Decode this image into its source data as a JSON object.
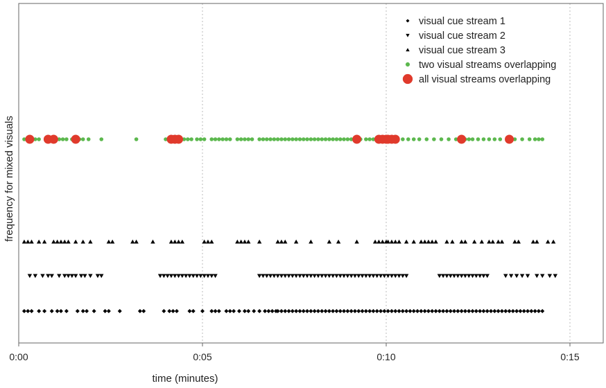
{
  "chart_data": {
    "type": "scatter",
    "xlabel": "time (minutes)",
    "ylabel": "frequency for mixed visuals",
    "xlim": [
      0,
      16
    ],
    "x_ticks": [
      0,
      5,
      10,
      15
    ],
    "x_tick_labels": [
      "0:00",
      "0:05",
      "0:10",
      "0:15"
    ],
    "grid": "vertical dotted lines at ticks",
    "legend_position": "top-right",
    "legend": [
      {
        "label": "visual cue stream 1",
        "marker": "diamond",
        "color": "#000000"
      },
      {
        "label": "visual cue stream 2",
        "marker": "triangle-down",
        "color": "#000000"
      },
      {
        "label": "visual cue stream 3",
        "marker": "triangle-up",
        "color": "#000000"
      },
      {
        "label": "two visual streams overlapping",
        "marker": "small-circle",
        "color": "#5cb84e"
      },
      {
        "label": "all visual streams overlapping",
        "marker": "large-circle",
        "color": "#e03a2c"
      }
    ],
    "series": [
      {
        "name": "visual cue stream 1",
        "row": 1,
        "x": [
          0.15,
          0.25,
          0.35,
          0.55,
          0.7,
          0.9,
          1.05,
          1.15,
          1.3,
          1.6,
          1.75,
          1.85,
          2.05,
          2.35,
          2.45,
          2.75,
          3.3,
          3.4,
          3.95,
          4.1,
          4.2,
          4.3,
          4.65,
          4.75,
          5.0,
          5.25,
          5.35,
          5.45,
          5.65,
          5.75,
          5.85,
          6.0,
          6.15,
          6.25,
          6.4,
          6.55,
          6.7,
          6.8,
          6.9,
          7.0,
          7.05,
          7.15,
          7.25,
          7.35,
          7.45,
          7.55,
          7.65,
          7.75,
          7.85,
          7.95,
          8.05,
          8.15,
          8.25,
          8.35,
          8.45,
          8.55,
          8.65,
          8.75,
          8.85,
          8.95,
          9.05,
          9.15,
          9.25,
          9.35,
          9.45,
          9.55,
          9.65,
          9.75,
          9.85,
          9.95,
          10.05,
          10.15,
          10.25,
          10.35,
          10.45,
          10.55,
          10.65,
          10.75,
          10.85,
          10.95,
          11.05,
          11.15,
          11.25,
          11.35,
          11.45,
          11.55,
          11.65,
          11.75,
          11.85,
          11.95,
          12.05,
          12.15,
          12.25,
          12.35,
          12.45,
          12.55,
          12.65,
          12.75,
          12.85,
          12.95,
          13.05,
          13.15,
          13.25,
          13.35,
          13.45,
          13.55,
          13.65,
          13.75,
          13.85,
          13.95,
          14.05,
          14.15,
          14.25
        ]
      },
      {
        "name": "visual cue stream 2",
        "row": 2,
        "x": [
          0.3,
          0.45,
          0.65,
          0.8,
          0.9,
          1.1,
          1.25,
          1.35,
          1.45,
          1.55,
          1.7,
          1.8,
          1.95,
          2.15,
          2.25,
          3.85,
          3.95,
          4.05,
          4.15,
          4.25,
          4.35,
          4.45,
          4.55,
          4.65,
          4.75,
          4.85,
          4.95,
          5.05,
          5.15,
          5.25,
          5.35,
          6.55,
          6.65,
          6.75,
          6.85,
          6.95,
          7.05,
          7.15,
          7.25,
          7.35,
          7.45,
          7.55,
          7.65,
          7.75,
          7.85,
          7.95,
          8.05,
          8.15,
          8.25,
          8.35,
          8.45,
          8.55,
          8.65,
          8.75,
          8.85,
          8.95,
          9.05,
          9.15,
          9.25,
          9.35,
          9.45,
          9.55,
          9.65,
          9.75,
          9.85,
          9.95,
          10.05,
          10.15,
          10.25,
          10.35,
          10.45,
          10.55,
          11.45,
          11.55,
          11.65,
          11.75,
          11.85,
          11.95,
          12.05,
          12.15,
          12.25,
          12.35,
          12.45,
          12.55,
          12.65,
          12.75,
          13.25,
          13.4,
          13.55,
          13.7,
          13.85,
          14.1,
          14.25,
          14.45,
          14.6
        ]
      },
      {
        "name": "visual cue stream 3",
        "row": 3,
        "x": [
          0.15,
          0.25,
          0.35,
          0.55,
          0.7,
          0.95,
          1.05,
          1.15,
          1.25,
          1.35,
          1.55,
          1.75,
          1.95,
          2.45,
          2.55,
          3.1,
          3.2,
          3.65,
          4.15,
          4.25,
          4.35,
          4.45,
          5.05,
          5.15,
          5.25,
          5.95,
          6.05,
          6.15,
          6.25,
          6.55,
          7.05,
          7.15,
          7.25,
          7.55,
          7.95,
          8.45,
          8.7,
          9.2,
          9.7,
          9.8,
          9.9,
          10.0,
          10.05,
          10.15,
          10.25,
          10.35,
          10.55,
          10.75,
          10.95,
          11.05,
          11.15,
          11.25,
          11.35,
          11.65,
          11.8,
          12.05,
          12.15,
          12.4,
          12.6,
          12.8,
          12.9,
          13.05,
          13.15,
          13.5,
          13.6,
          14.0,
          14.1,
          14.4,
          14.55
        ]
      },
      {
        "name": "two visual streams overlapping",
        "row": 0,
        "x": [
          0.15,
          0.25,
          0.35,
          0.45,
          0.55,
          0.75,
          0.85,
          1.0,
          1.1,
          1.2,
          1.3,
          1.45,
          1.55,
          1.65,
          1.75,
          1.9,
          2.25,
          3.2,
          4.0,
          4.1,
          4.2,
          4.3,
          4.4,
          4.5,
          4.6,
          4.7,
          4.85,
          4.95,
          5.05,
          5.25,
          5.35,
          5.45,
          5.55,
          5.65,
          5.75,
          5.95,
          6.05,
          6.15,
          6.25,
          6.35,
          6.55,
          6.65,
          6.75,
          6.85,
          6.95,
          7.05,
          7.15,
          7.25,
          7.35,
          7.45,
          7.55,
          7.65,
          7.75,
          7.85,
          7.95,
          8.05,
          8.15,
          8.25,
          8.35,
          8.45,
          8.55,
          8.65,
          8.75,
          8.85,
          8.95,
          9.05,
          9.15,
          9.3,
          9.45,
          9.55,
          9.65,
          9.75,
          9.85,
          9.95,
          10.05,
          10.15,
          10.3,
          10.45,
          10.6,
          10.75,
          10.9,
          11.1,
          11.3,
          11.5,
          11.7,
          11.9,
          12.05,
          12.15,
          12.25,
          12.35,
          12.5,
          12.65,
          12.8,
          12.95,
          13.1,
          13.3,
          13.5,
          13.7,
          13.9,
          14.05,
          14.15,
          14.25
        ]
      },
      {
        "name": "all visual streams overlapping",
        "row": 0,
        "x": [
          0.3,
          0.8,
          0.95,
          1.55,
          4.15,
          4.25,
          4.35,
          9.2,
          9.8,
          9.9,
          10.0,
          10.05,
          10.15,
          10.25,
          12.05,
          13.35
        ]
      }
    ]
  }
}
